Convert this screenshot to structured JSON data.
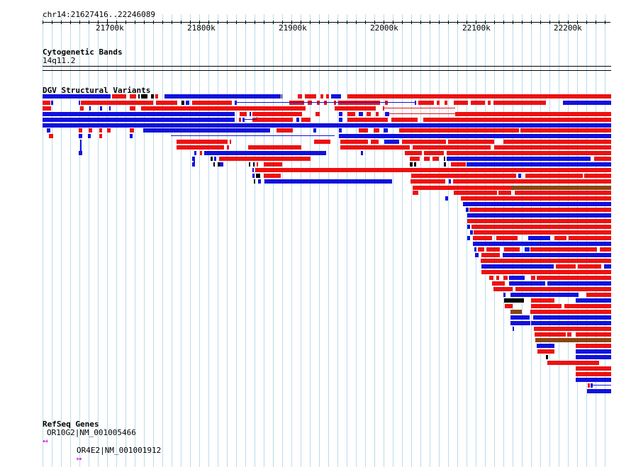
{
  "ruler": {
    "location": "chr14:21627416..22246089",
    "ticks": [
      "21700k",
      "21800k",
      "21900k",
      "22000k",
      "22100k",
      "22200k"
    ]
  },
  "tracks": {
    "cytoband": {
      "title": "Cytogenetic Bands",
      "band": "14q11.2"
    },
    "dgv": {
      "title": "DGV Structural Variants"
    },
    "refseq": {
      "title": "RefSeq Genes",
      "genes": [
        {
          "label": "OR10G2|NM_001005466",
          "strand_icon": "left-arrow-icon"
        },
        {
          "label": "OR4E2|NM_001001912",
          "strand_icon": "right-arrow-icon"
        }
      ]
    }
  },
  "colors": {
    "gain": "#ee1111",
    "loss": "#1111dd",
    "complex": "#8b4513",
    "inversion": "#000000",
    "grid": "#b9dcec",
    "gene": "#cc00cc"
  }
}
